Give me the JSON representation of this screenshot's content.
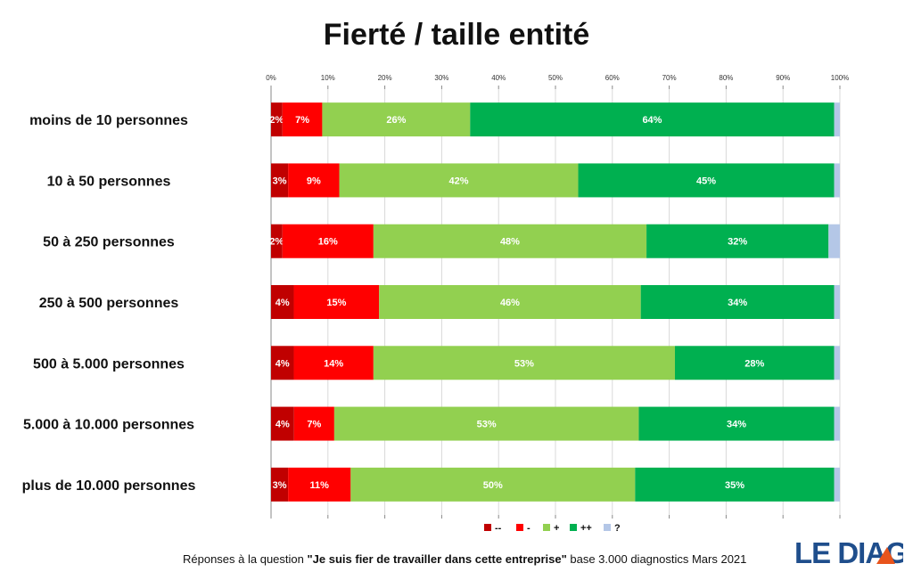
{
  "title": "Fierté / taille entité",
  "footer": {
    "prefix": "Réponses à la question",
    "question": "\"Je suis fier de travailler dans cette entreprise\"",
    "suffix": "base 3.000 diagnostics Mars 2021"
  },
  "logo": {
    "text": "LE DIAG",
    "color": "#1f4e8c",
    "accent": "#e8541c"
  },
  "chart_data": {
    "type": "bar",
    "orientation": "horizontal",
    "stacked": "percent",
    "title": "Fierté / taille entité",
    "categories": [
      "moins de 10 personnes",
      "10 à 50 personnes",
      "50 à 250 personnes",
      "250 à 500 personnes",
      "500 à 5.000 personnes",
      "5.000 à 10.000 personnes",
      "plus de 10.000 personnes"
    ],
    "series": [
      {
        "name": "--",
        "color": "#c00000",
        "values": [
          2,
          3,
          2,
          4,
          4,
          4,
          3
        ]
      },
      {
        "name": "-",
        "color": "#ff0000",
        "values": [
          7,
          9,
          16,
          15,
          14,
          7,
          11
        ]
      },
      {
        "name": "+",
        "color": "#92d050",
        "values": [
          26,
          42,
          48,
          46,
          53,
          53,
          50
        ]
      },
      {
        "name": "++",
        "color": "#00b050",
        "values": [
          64,
          45,
          32,
          34,
          28,
          34,
          35
        ]
      },
      {
        "name": "?",
        "color": "#b4c7e7",
        "values": [
          1,
          1,
          2,
          1,
          1,
          1,
          1
        ]
      }
    ],
    "xlim": [
      0,
      100
    ],
    "xticks": [
      "0%",
      "10%",
      "20%",
      "30%",
      "40%",
      "50%",
      "60%",
      "70%",
      "80%",
      "90%",
      "100%"
    ],
    "grid": true,
    "legend": "bottom"
  }
}
